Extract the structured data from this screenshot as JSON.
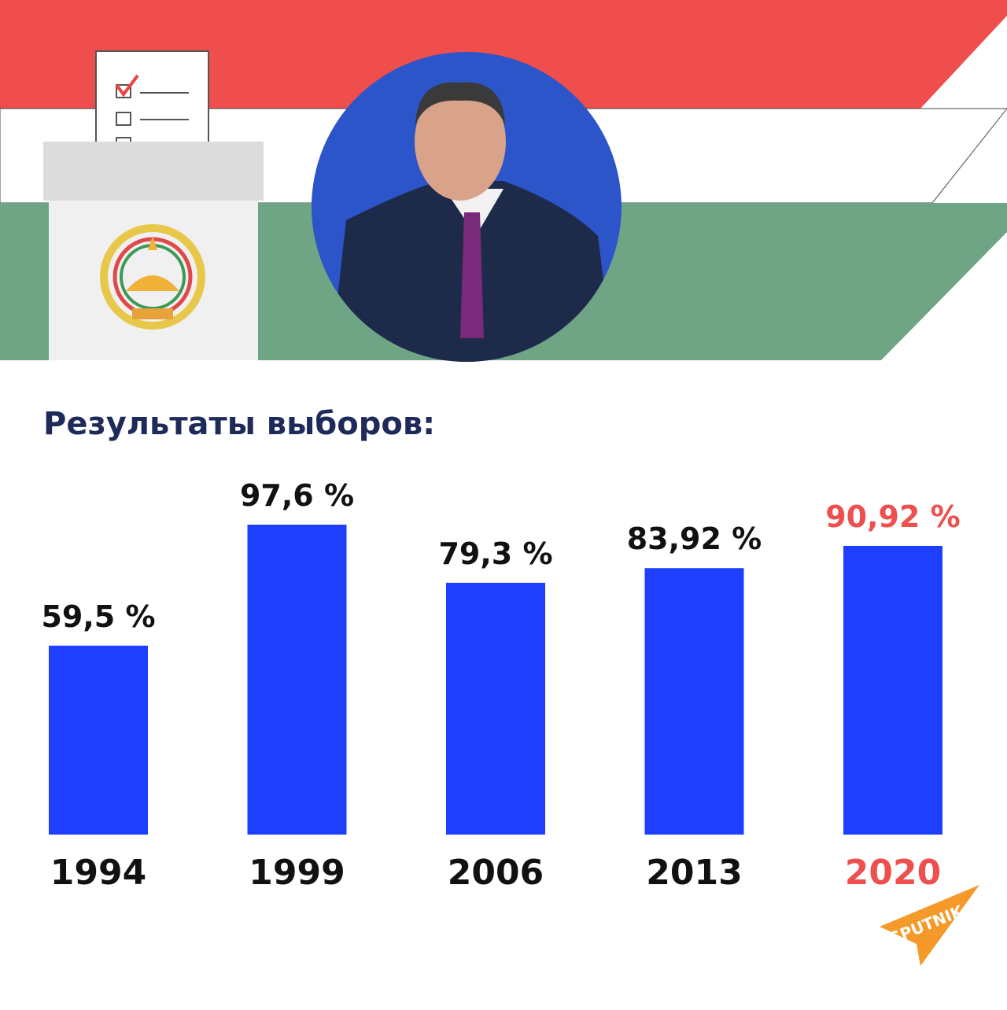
{
  "chart_data": {
    "type": "bar",
    "title": "Результаты выборов:",
    "categories": [
      "1994",
      "1999",
      "2006",
      "2013",
      "2020"
    ],
    "values": [
      59.5,
      97.6,
      79.3,
      83.92,
      90.92
    ],
    "value_labels": [
      "59,5 %",
      "97,6 %",
      "79,3 %",
      "83,92 %",
      "90,92 %"
    ],
    "color": "#1f3fff",
    "label_colors": [
      "#111111",
      "#111111",
      "#111111",
      "#111111",
      "#ee4f4f"
    ]
  },
  "logo": "SPUTNIK"
}
